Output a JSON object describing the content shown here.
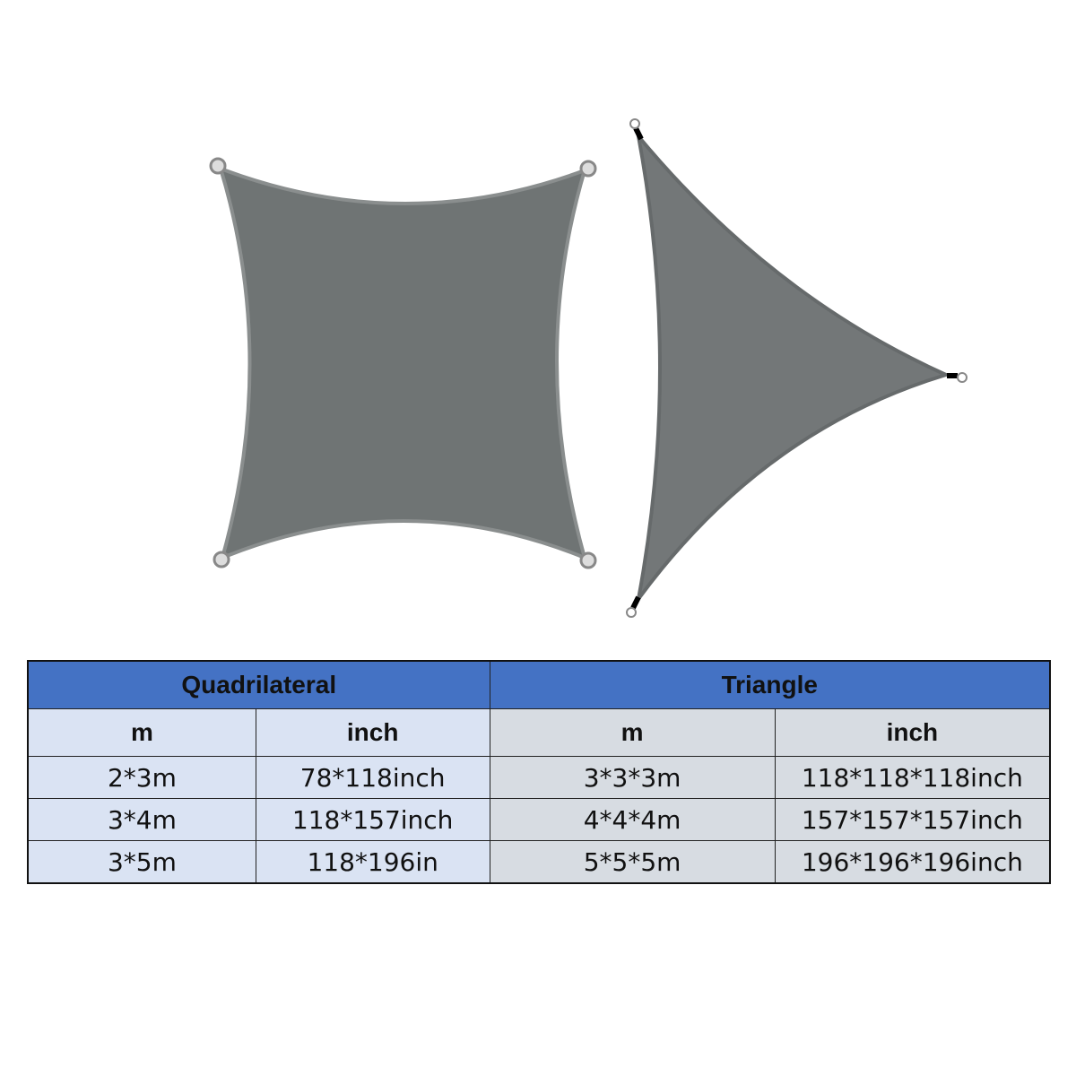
{
  "images": {
    "quadrilateral_shade": {
      "icon": "quadrilateral-shade-sail",
      "color": "#6f7474"
    },
    "triangle_shade": {
      "icon": "triangle-shade-sail",
      "color": "#737778"
    }
  },
  "table": {
    "groups": [
      "Quadrilateral",
      "Triangle"
    ],
    "subheaders": [
      "m",
      "inch",
      "m",
      "inch"
    ],
    "rows": [
      [
        "2*3m",
        "78*118inch",
        "3*3*3m",
        "118*118*118inch"
      ],
      [
        "3*4m",
        "118*157inch",
        "4*4*4m",
        "157*157*157inch"
      ],
      [
        "3*5m",
        "118*196in",
        "5*5*5m",
        "196*196*196inch"
      ]
    ],
    "colors": {
      "header": "#4472c4",
      "quad_cells": "#dae3f3",
      "tri_cells": "#d7dce2"
    }
  }
}
